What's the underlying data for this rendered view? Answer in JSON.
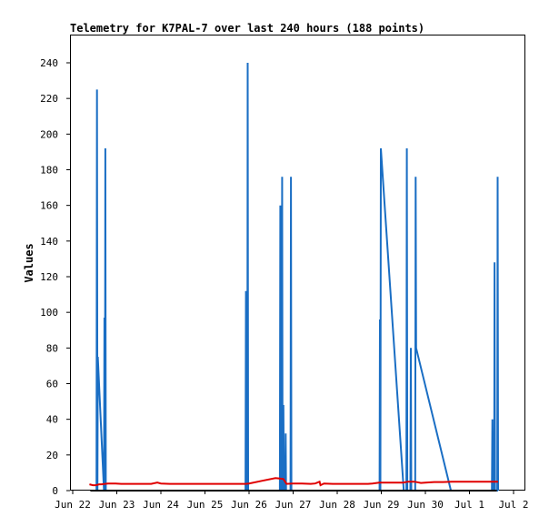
{
  "chart_data": {
    "type": "line",
    "title": "Telemetry for K7PAL-7 over last 240 hours (188 points)",
    "xlabel": "",
    "ylabel": "Values",
    "x_unit": "day",
    "xlim": [
      22,
      32
    ],
    "ylim": [
      0,
      255
    ],
    "grid": false,
    "x_ticks": [
      {
        "x": 22,
        "label": "Jun 22"
      },
      {
        "x": 23,
        "label": "Jun 23"
      },
      {
        "x": 24,
        "label": "Jun 24"
      },
      {
        "x": 25,
        "label": "Jun 25"
      },
      {
        "x": 26,
        "label": "Jun 26"
      },
      {
        "x": 27,
        "label": "Jun 27"
      },
      {
        "x": 28,
        "label": "Jun 28"
      },
      {
        "x": 29,
        "label": "Jun 29"
      },
      {
        "x": 30,
        "label": "Jun 30"
      },
      {
        "x": 31,
        "label": "Jul 1"
      },
      {
        "x": 32,
        "label": "Jul 2"
      }
    ],
    "y_ticks": [
      0,
      20,
      40,
      60,
      80,
      100,
      120,
      140,
      160,
      180,
      200,
      220,
      240
    ],
    "series": [
      {
        "color": "#1a6ec4",
        "points": [
          [
            22.52,
            0
          ],
          [
            22.54,
            0
          ],
          [
            22.55,
            225
          ],
          [
            22.56,
            0
          ],
          [
            22.57,
            75
          ],
          [
            22.71,
            0
          ],
          [
            22.72,
            97
          ],
          [
            22.73,
            0
          ],
          [
            22.74,
            192
          ],
          [
            22.75,
            0
          ],
          [
            25.92,
            0
          ],
          [
            25.93,
            112
          ],
          [
            25.94,
            0
          ],
          [
            25.96,
            0
          ],
          [
            25.97,
            240
          ],
          [
            25.98,
            0
          ],
          [
            26.7,
            0
          ],
          [
            26.71,
            160
          ],
          [
            26.72,
            0
          ],
          [
            26.74,
            0
          ],
          [
            26.75,
            176
          ],
          [
            26.76,
            0
          ],
          [
            26.78,
            48
          ],
          [
            26.79,
            0
          ],
          [
            26.82,
            0
          ],
          [
            26.83,
            32
          ],
          [
            26.84,
            0
          ],
          [
            26.94,
            0
          ],
          [
            26.95,
            176
          ],
          [
            26.96,
            0
          ],
          [
            28.96,
            0
          ],
          [
            28.97,
            96
          ],
          [
            28.98,
            0
          ],
          [
            28.99,
            192
          ],
          [
            29.51,
            0
          ],
          [
            29.57,
            0
          ],
          [
            29.58,
            192
          ],
          [
            29.59,
            0
          ],
          [
            29.66,
            0
          ],
          [
            29.67,
            80
          ],
          [
            29.68,
            0
          ],
          [
            29.77,
            0
          ],
          [
            29.78,
            176
          ],
          [
            29.79,
            80
          ],
          [
            30.58,
            0
          ],
          [
            30.6,
            0
          ],
          [
            31.51,
            0
          ],
          [
            31.52,
            40
          ],
          [
            31.53,
            0
          ],
          [
            31.56,
            0
          ],
          [
            31.57,
            128
          ],
          [
            31.58,
            0
          ],
          [
            31.63,
            0
          ],
          [
            31.64,
            176
          ],
          [
            31.65,
            0
          ]
        ]
      },
      {
        "color": "#e00000",
        "points": [
          [
            22.38,
            3.5
          ],
          [
            22.46,
            3.0
          ],
          [
            22.48,
            3.0
          ],
          [
            22.52,
            3.0
          ],
          [
            22.6,
            3.5
          ],
          [
            22.65,
            3.5
          ],
          [
            22.8,
            4.0
          ],
          [
            22.95,
            4.0
          ],
          [
            23.1,
            3.8
          ],
          [
            23.3,
            3.8
          ],
          [
            23.5,
            3.8
          ],
          [
            23.78,
            3.8
          ],
          [
            23.92,
            4.5
          ],
          [
            24.0,
            4.0
          ],
          [
            24.2,
            3.8
          ],
          [
            24.4,
            3.8
          ],
          [
            24.6,
            3.8
          ],
          [
            24.8,
            3.8
          ],
          [
            25.0,
            3.8
          ],
          [
            25.2,
            3.8
          ],
          [
            25.4,
            3.8
          ],
          [
            25.6,
            3.8
          ],
          [
            25.8,
            3.8
          ],
          [
            25.92,
            3.8
          ],
          [
            26.0,
            4.0
          ],
          [
            26.3,
            5.5
          ],
          [
            26.6,
            7.0
          ],
          [
            26.7,
            6.8
          ],
          [
            26.78,
            6.5
          ],
          [
            26.85,
            3.8
          ],
          [
            27.0,
            4.0
          ],
          [
            27.2,
            4.0
          ],
          [
            27.4,
            3.8
          ],
          [
            27.5,
            4.0
          ],
          [
            27.6,
            5.0
          ],
          [
            27.62,
            3.0
          ],
          [
            27.7,
            4.0
          ],
          [
            27.9,
            3.8
          ],
          [
            28.1,
            3.8
          ],
          [
            28.3,
            3.8
          ],
          [
            28.5,
            3.8
          ],
          [
            28.7,
            3.8
          ],
          [
            28.8,
            4.0
          ],
          [
            28.95,
            4.5
          ],
          [
            29.1,
            4.5
          ],
          [
            29.2,
            4.5
          ],
          [
            29.35,
            4.5
          ],
          [
            29.5,
            4.5
          ],
          [
            29.6,
            5.0
          ],
          [
            29.75,
            5.0
          ],
          [
            29.9,
            4.3
          ],
          [
            30.0,
            4.5
          ],
          [
            30.2,
            4.8
          ],
          [
            30.4,
            4.8
          ],
          [
            30.6,
            5.0
          ],
          [
            30.8,
            5.0
          ],
          [
            31.0,
            5.0
          ],
          [
            31.2,
            5.0
          ],
          [
            31.4,
            5.0
          ],
          [
            31.55,
            5.0
          ],
          [
            31.65,
            5.0
          ]
        ]
      },
      {
        "color": "#000000",
        "points": [
          [
            22.4,
            0
          ],
          [
            31.62,
            0
          ]
        ]
      }
    ]
  }
}
